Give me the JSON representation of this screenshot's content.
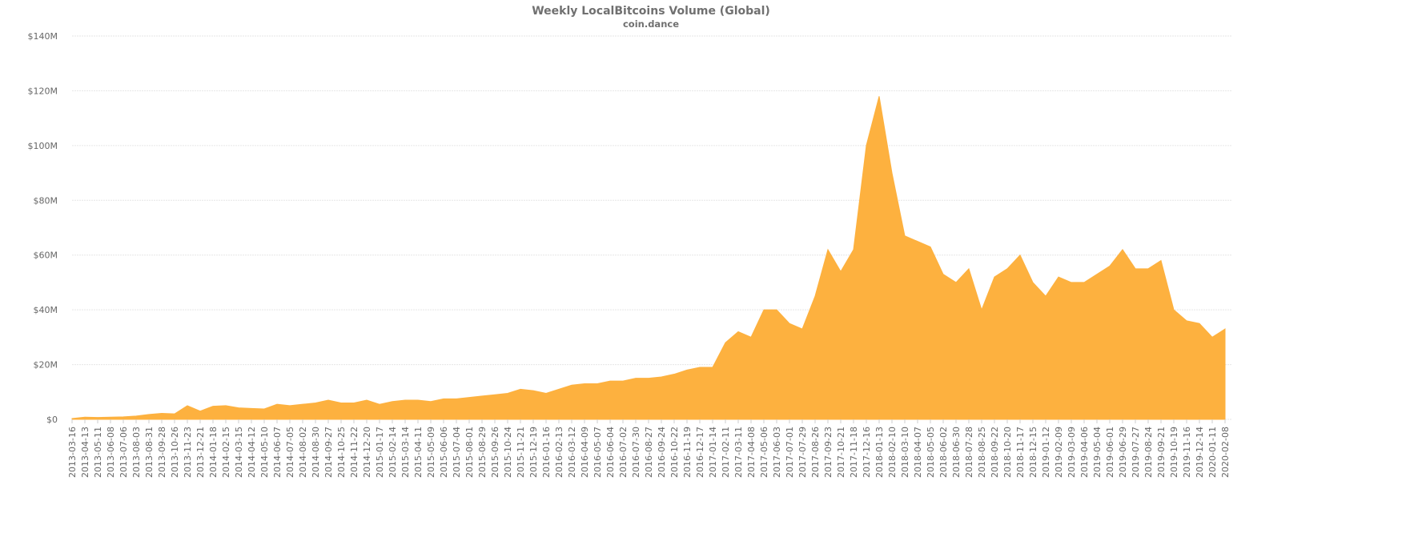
{
  "chart_data": {
    "type": "area",
    "title": "Weekly LocalBitcoins Volume (Global)",
    "subtitle": "coin.dance",
    "color": "#fdb13f",
    "grid": true,
    "categories": [
      "2013-03-16",
      "2013-04-13",
      "2013-05-11",
      "2013-06-08",
      "2013-07-06",
      "2013-08-03",
      "2013-08-31",
      "2013-09-28",
      "2013-10-26",
      "2013-11-23",
      "2013-12-21",
      "2014-01-18",
      "2014-02-15",
      "2014-03-15",
      "2014-04-12",
      "2014-05-10",
      "2014-06-07",
      "2014-07-05",
      "2014-08-02",
      "2014-08-30",
      "2014-09-27",
      "2014-10-25",
      "2014-11-22",
      "2014-12-20",
      "2015-01-17",
      "2015-02-14",
      "2015-03-14",
      "2015-04-11",
      "2015-05-09",
      "2015-06-06",
      "2015-07-04",
      "2015-08-01",
      "2015-08-29",
      "2015-09-26",
      "2015-10-24",
      "2015-11-21",
      "2015-12-19",
      "2016-01-16",
      "2016-02-13",
      "2016-03-12",
      "2016-04-09",
      "2016-05-07",
      "2016-06-04",
      "2016-07-02",
      "2016-07-30",
      "2016-08-27",
      "2016-09-24",
      "2016-10-22",
      "2016-11-19",
      "2016-12-17",
      "2017-01-14",
      "2017-02-11",
      "2017-03-11",
      "2017-04-08",
      "2017-05-06",
      "2017-06-03",
      "2017-07-01",
      "2017-07-29",
      "2017-08-26",
      "2017-09-23",
      "2017-10-21",
      "2017-11-18",
      "2017-12-16",
      "2018-01-13",
      "2018-02-10",
      "2018-03-10",
      "2018-04-07",
      "2018-05-05",
      "2018-06-02",
      "2018-06-30",
      "2018-07-28",
      "2018-08-25",
      "2018-09-22",
      "2018-10-20",
      "2018-11-17",
      "2018-12-15",
      "2019-01-12",
      "2019-02-09",
      "2019-03-09",
      "2019-04-06",
      "2019-05-04",
      "2019-06-01",
      "2019-06-29",
      "2019-07-27",
      "2019-08-24",
      "2019-09-21",
      "2019-10-19",
      "2019-11-16",
      "2019-12-14",
      "2020-01-11",
      "2020-02-08"
    ],
    "values": [
      300000,
      800000,
      700000,
      800000,
      900000,
      1200000,
      1800000,
      2200000,
      2000000,
      5000000,
      3000000,
      4800000,
      5000000,
      4200000,
      4000000,
      3800000,
      5500000,
      5000000,
      5500000,
      6000000,
      7000000,
      6000000,
      6000000,
      7000000,
      5500000,
      6500000,
      7000000,
      7000000,
      6500000,
      7500000,
      7500000,
      8000000,
      8500000,
      9000000,
      9500000,
      11000000,
      10500000,
      9500000,
      11000000,
      12500000,
      13000000,
      13000000,
      14000000,
      14000000,
      15000000,
      15000000,
      15500000,
      16500000,
      18000000,
      19000000,
      19000000,
      28000000,
      32000000,
      30000000,
      40000000,
      40000000,
      35000000,
      33000000,
      45000000,
      62000000,
      54000000,
      62000000,
      100000000,
      118000000,
      90000000,
      67000000,
      65000000,
      63000000,
      53000000,
      50000000,
      55000000,
      40000000,
      52000000,
      55000000,
      60000000,
      50000000,
      45000000,
      52000000,
      50000000,
      50000000,
      53000000,
      56000000,
      62000000,
      55000000,
      55000000,
      58000000,
      40000000,
      36000000,
      35000000,
      30000000,
      33000000
    ],
    "ylim": [
      0,
      140000000
    ],
    "yticks": [
      {
        "value": 0,
        "label": "$0"
      },
      {
        "value": 20000000,
        "label": "$20M"
      },
      {
        "value": 40000000,
        "label": "$40M"
      },
      {
        "value": 60000000,
        "label": "$60M"
      },
      {
        "value": 80000000,
        "label": "$80M"
      },
      {
        "value": 100000000,
        "label": "$100M"
      },
      {
        "value": 120000000,
        "label": "$120M"
      },
      {
        "value": 140000000,
        "label": "$140M"
      }
    ]
  }
}
